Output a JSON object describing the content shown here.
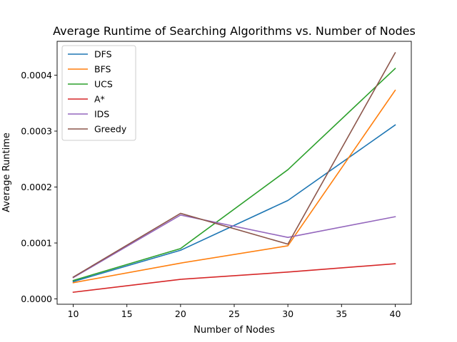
{
  "chart_data": {
    "type": "line",
    "title": "Average Runtime of Searching Algorithms vs. Number of Nodes",
    "xlabel": "Number of Nodes",
    "ylabel": "Average Runtime",
    "x": [
      10,
      20,
      30,
      40
    ],
    "xlim": [
      8.5,
      41.5
    ],
    "ylim": [
      -9.5e-06,
      0.0004605
    ],
    "xticks": [
      10,
      15,
      20,
      25,
      30,
      35,
      40
    ],
    "yticks": [
      0.0,
      0.0001,
      0.0002,
      0.0003,
      0.0004
    ],
    "ytick_labels": [
      "0.0000",
      "0.0001",
      "0.0002",
      "0.0003",
      "0.0004"
    ],
    "grid": false,
    "legend_position": "upper-left",
    "series": [
      {
        "name": "DFS",
        "color": "#1f77b4",
        "values": [
          3.1e-05,
          8.7e-05,
          0.000176,
          0.000311
        ]
      },
      {
        "name": "BFS",
        "color": "#ff7f0e",
        "values": [
          2.9e-05,
          6.4e-05,
          9.5e-05,
          0.000373
        ]
      },
      {
        "name": "UCS",
        "color": "#2ca02c",
        "values": [
          3.3e-05,
          9e-05,
          0.000231,
          0.000412
        ]
      },
      {
        "name": "A*",
        "color": "#d62728",
        "values": [
          1.2e-05,
          3.5e-05,
          4.8e-05,
          6.3e-05
        ]
      },
      {
        "name": "IDS",
        "color": "#9467bd",
        "values": [
          3.8e-05,
          0.00015,
          0.00011,
          0.000147
        ]
      },
      {
        "name": "Greedy",
        "color": "#8c564b",
        "values": [
          3.9e-05,
          0.000153,
          9.8e-05,
          0.00044
        ]
      }
    ]
  }
}
